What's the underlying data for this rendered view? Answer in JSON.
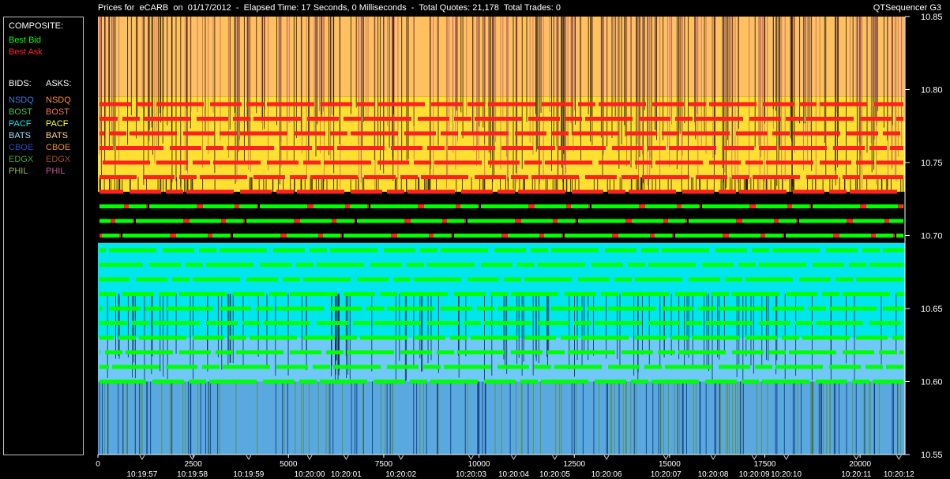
{
  "header": {
    "title": "Prices for  eCARB  on  01/17/2012  -  Elapsed Time: 17 Seconds, 0 Milliseconds  -  Total Quotes: 21,178  Total Trades: 0",
    "app_name": "QTSequencer G3"
  },
  "legend": {
    "composite_label": "COMPOSITE:",
    "best_bid": {
      "label": "Best Bid",
      "color": "#00ff00"
    },
    "best_ask": {
      "label": "Best Ask",
      "color": "#ff2020"
    },
    "bids_label": "BIDS:",
    "asks_label": "ASKS:",
    "bids": [
      {
        "label": "NSDQ",
        "color": "#3a7ad8"
      },
      {
        "label": "BOST",
        "color": "#4cc24c"
      },
      {
        "label": "PACF",
        "color": "#00e8e8"
      },
      {
        "label": "BATS",
        "color": "#a8dcff"
      },
      {
        "label": "CBOE",
        "color": "#1f4fb8"
      },
      {
        "label": "EDGX",
        "color": "#55a030"
      },
      {
        "label": "PHIL",
        "color": "#9ab868"
      }
    ],
    "asks": [
      {
        "label": "NSDQ",
        "color": "#ff8c20"
      },
      {
        "label": "BOST",
        "color": "#ff7060"
      },
      {
        "label": "PACF",
        "color": "#ffff30"
      },
      {
        "label": "BATS",
        "color": "#ffd890"
      },
      {
        "label": "CBOE",
        "color": "#e89020"
      },
      {
        "label": "EDGX",
        "color": "#a05030"
      },
      {
        "label": "PHIL",
        "color": "#c05890"
      }
    ]
  },
  "chart_data": {
    "type": "line",
    "title": "",
    "xlabel": "",
    "ylabel": "",
    "xlim": [
      0,
      21178
    ],
    "ylim": [
      10.55,
      10.85
    ],
    "y_ticks": [
      "10.85",
      "10.80",
      "10.75",
      "10.70",
      "10.65",
      "10.60",
      "10.55"
    ],
    "x_ticks": [
      {
        "value": 0,
        "label": "0"
      },
      {
        "value": 2500,
        "label": "2500"
      },
      {
        "value": 5000,
        "label": "5000"
      },
      {
        "value": 7500,
        "label": "7500"
      },
      {
        "value": 10000,
        "label": "10000"
      },
      {
        "value": 12500,
        "label": "12500"
      },
      {
        "value": 15000,
        "label": "15000"
      },
      {
        "value": 17500,
        "label": "17500"
      },
      {
        "value": 20000,
        "label": "20000"
      }
    ],
    "time_ticks": [
      {
        "value": 1450,
        "label": "10:19:57"
      },
      {
        "value": 3100,
        "label": "10:19:58"
      },
      {
        "value": 4950,
        "label": "10:19:59"
      },
      {
        "value": 6950,
        "label": "10:20:00"
      },
      {
        "value": 8150,
        "label": "10:20:01"
      },
      {
        "value": 9950,
        "label": "10:20:02"
      },
      {
        "value": 12250,
        "label": "10:20:03"
      },
      {
        "value": 13650,
        "label": "10:20:04"
      },
      {
        "value": 15000,
        "label": "10:20:05"
      },
      {
        "value": 16700,
        "label": "10:20:06"
      },
      {
        "value": 18650,
        "label": "10:20:07"
      },
      {
        "value": 20200,
        "label": "10:20:08"
      },
      {
        "value": 21550,
        "label": "10:20:09"
      },
      {
        "value": 22600,
        "label": "10:20:10"
      },
      {
        "value": 24900,
        "label": "10:20:11"
      },
      {
        "value": 26300,
        "label": "10:20:12"
      }
    ],
    "series": [
      {
        "name": "Best Ask",
        "color": "#ff2020",
        "levels": [
          10.79,
          10.78,
          10.77,
          10.76,
          10.75,
          10.74,
          10.73,
          10.72,
          10.71,
          10.7
        ]
      },
      {
        "name": "Best Bid",
        "color": "#00ff00",
        "levels": [
          10.72,
          10.71,
          10.7,
          10.69,
          10.68,
          10.67,
          10.66,
          10.65,
          10.64,
          10.63,
          10.62,
          10.61,
          10.6
        ]
      }
    ]
  }
}
